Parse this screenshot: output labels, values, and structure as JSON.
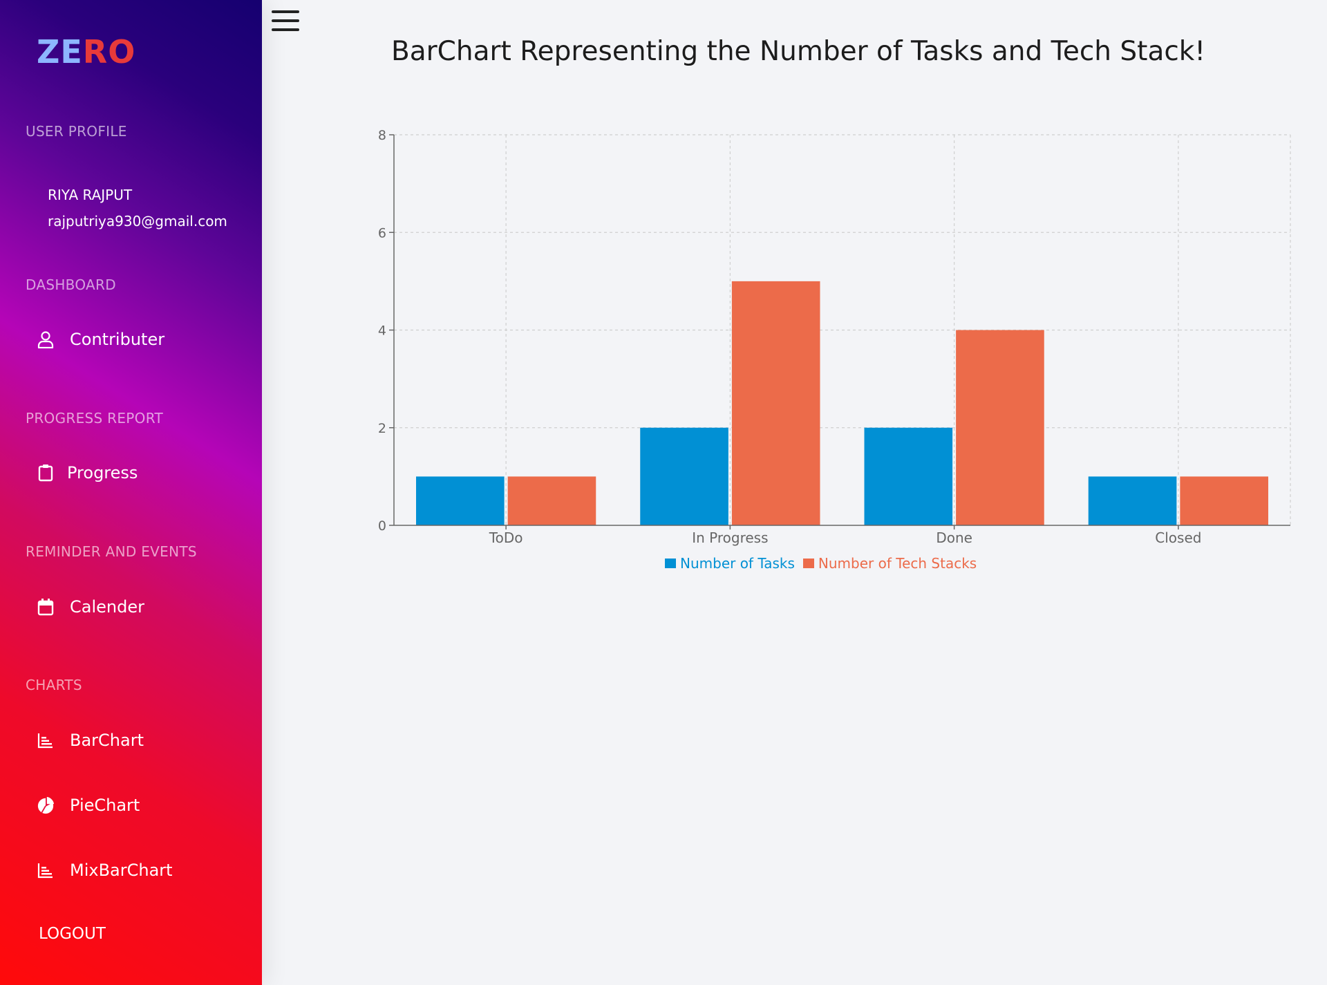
{
  "sidebar": {
    "logo_part1": "ZE",
    "logo_part2": "RO",
    "user_profile_title": "USER PROFILE",
    "user_name": "RIYA  RAJPUT",
    "user_email": "rajputriya930@gmail.com",
    "dashboard_title": "DASHBOARD",
    "contributer_label": "Contributer",
    "progress_report_title": "PROGRESS REPORT",
    "progress_label": "Progress",
    "reminder_title": "REMINDER AND EVENTS",
    "calender_label": "Calender",
    "charts_title": "CHARTS",
    "barchart_label": "BarChart",
    "piechart_label": "PieChart",
    "mixbarchart_label": "MixBarChart",
    "logout_label": "LOGOUT"
  },
  "main": {
    "title": "BarChart Representing the Number of Tasks and Tech Stack!"
  },
  "colors": {
    "tasks": "#0190d4",
    "tech_stacks": "#ec6b4a"
  },
  "chart_data": {
    "type": "bar",
    "categories": [
      "ToDo",
      "In Progress",
      "Done",
      "Closed"
    ],
    "series": [
      {
        "name": "Number of Tasks",
        "values": [
          1,
          2,
          2,
          1
        ]
      },
      {
        "name": "Number of Tech Stacks",
        "values": [
          1,
          5,
          4,
          1
        ]
      }
    ],
    "ylim": [
      0,
      8
    ],
    "yticks": [
      0,
      2,
      4,
      6,
      8
    ],
    "grid": true,
    "legend": "bottom-center"
  }
}
